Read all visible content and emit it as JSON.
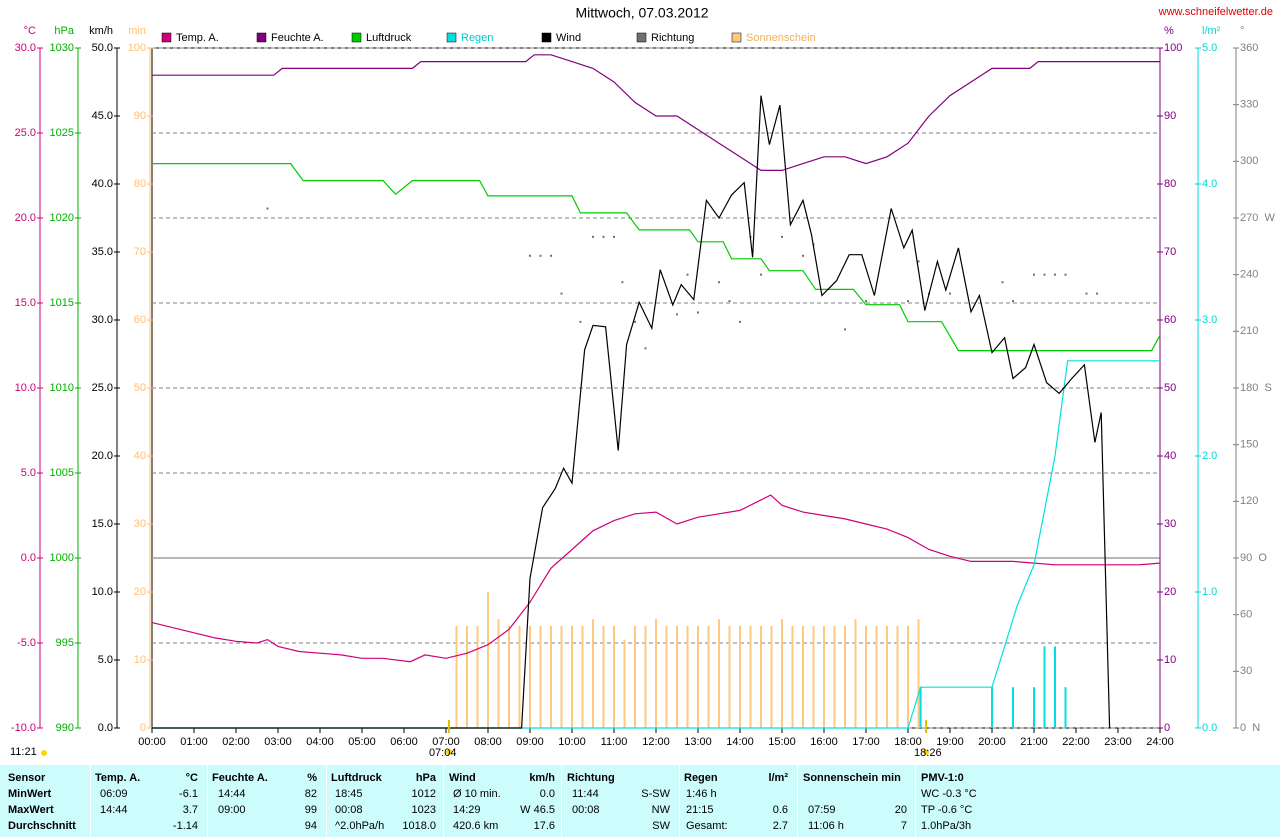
{
  "chart_data": {
    "type": "line",
    "title": "Mittwoch, 07.03.2012",
    "source": "www.schneifelwetter.de",
    "xlim": [
      0,
      24
    ],
    "xticks": [
      {
        "value": 0,
        "label": "00:00"
      },
      {
        "value": 1,
        "label": "01:00"
      },
      {
        "value": 2,
        "label": "02:00"
      },
      {
        "value": 3,
        "label": "03:00"
      },
      {
        "value": 4,
        "label": "04:00"
      },
      {
        "value": 5,
        "label": "05:00"
      },
      {
        "value": 6,
        "label": "06:00"
      },
      {
        "value": 7,
        "label": "07:00"
      },
      {
        "value": 8,
        "label": "08:00"
      },
      {
        "value": 9,
        "label": "09:00"
      },
      {
        "value": 10,
        "label": "10:00"
      },
      {
        "value": 11,
        "label": "11:00"
      },
      {
        "value": 12,
        "label": "12:00"
      },
      {
        "value": 13,
        "label": "13:00"
      },
      {
        "value": 14,
        "label": "14:00"
      },
      {
        "value": 15,
        "label": "15:00"
      },
      {
        "value": 16,
        "label": "16:00"
      },
      {
        "value": 17,
        "label": "17:00"
      },
      {
        "value": 18,
        "label": "18:00"
      },
      {
        "value": 19,
        "label": "19:00"
      },
      {
        "value": 20,
        "label": "20:00"
      },
      {
        "value": 21,
        "label": "21:00"
      },
      {
        "value": 22,
        "label": "22:00"
      },
      {
        "value": 23,
        "label": "23:00"
      },
      {
        "value": 24,
        "label": "24:00"
      }
    ],
    "grid": true,
    "axes": [
      {
        "id": "temp",
        "unit": "°C",
        "color": "#d0007a",
        "lim": [
          -10,
          30
        ],
        "ticks": [
          {
            "value": -10,
            "label": "-10.0"
          },
          {
            "value": -5,
            "label": "-5.0"
          },
          {
            "value": 0,
            "label": "0.0"
          },
          {
            "value": 5,
            "label": "5.0"
          },
          {
            "value": 10,
            "label": "10.0"
          },
          {
            "value": 15,
            "label": "15.0"
          },
          {
            "value": 20,
            "label": "20.0"
          },
          {
            "value": 25,
            "label": "25.0"
          },
          {
            "value": 30,
            "label": "30.0"
          }
        ]
      },
      {
        "id": "press",
        "unit": "hPa",
        "color": "#00b000",
        "lim": [
          990,
          1030
        ],
        "ticks": [
          990,
          995,
          1000,
          1005,
          1010,
          1015,
          1020,
          1025,
          1030
        ]
      },
      {
        "id": "wind",
        "unit": "km/h",
        "color": "#000000",
        "lim": [
          0,
          50
        ],
        "ticks": [
          {
            "value": 0,
            "label": "0.0"
          },
          {
            "value": 5,
            "label": "5.0"
          },
          {
            "value": 10,
            "label": "10.0"
          },
          {
            "value": 15,
            "label": "15.0"
          },
          {
            "value": 20,
            "label": "20.0"
          },
          {
            "value": 25,
            "label": "25.0"
          },
          {
            "value": 30,
            "label": "30.0"
          },
          {
            "value": 35,
            "label": "35.0"
          },
          {
            "value": 40,
            "label": "40.0"
          },
          {
            "value": 45,
            "label": "45.0"
          },
          {
            "value": 50,
            "label": "50.0"
          }
        ]
      },
      {
        "id": "sun",
        "unit": "min",
        "color": "#ffc070",
        "lim": [
          0,
          100
        ],
        "ticks": [
          0,
          10,
          20,
          30,
          40,
          50,
          60,
          70,
          80,
          90,
          100
        ]
      },
      {
        "id": "hum",
        "unit": "%",
        "color": "#800080",
        "lim": [
          0,
          100
        ],
        "ticks": [
          0,
          10,
          20,
          30,
          40,
          50,
          60,
          70,
          80,
          90,
          100
        ]
      },
      {
        "id": "rain",
        "unit": "l/m²",
        "color": "#00d8d8",
        "lim": [
          0,
          5
        ],
        "ticks": [
          {
            "value": 0,
            "label": "0.0"
          },
          {
            "value": 1,
            "label": "1.0"
          },
          {
            "value": 2,
            "label": "2.0"
          },
          {
            "value": 3,
            "label": "3.0"
          },
          {
            "value": 4,
            "label": "4.0"
          },
          {
            "value": 5,
            "label": "5.0"
          }
        ]
      },
      {
        "id": "dir",
        "unit": "°",
        "color": "#808080",
        "lim": [
          0,
          360
        ],
        "ticks": [
          {
            "value": 0,
            "label": "0  N"
          },
          30,
          60,
          {
            "value": 90,
            "label": "90  O"
          },
          120,
          150,
          {
            "value": 180,
            "label": "180  S"
          },
          210,
          240,
          {
            "value": 270,
            "label": "270  W"
          },
          300,
          330,
          360
        ]
      }
    ],
    "series": [
      {
        "name": "Temp. A.",
        "color": "#d0007a",
        "axis": "temp",
        "type": "line",
        "x": [
          0,
          0.5,
          1,
          1.5,
          2,
          2.5,
          2.75,
          3,
          3.5,
          4,
          4.5,
          5,
          5.5,
          6.15,
          6.5,
          7,
          7.5,
          8,
          8.5,
          9,
          9.5,
          10,
          10.5,
          11,
          11.5,
          12,
          12.5,
          13,
          13.5,
          14,
          14.73,
          15,
          15.5,
          16,
          16.5,
          17,
          17.5,
          18,
          18.5,
          19,
          19.5,
          20,
          20.5,
          21,
          21.5,
          22,
          22.5,
          23,
          23.5,
          24
        ],
        "values": [
          -3.8,
          -4.1,
          -4.4,
          -4.7,
          -4.9,
          -5.0,
          -4.8,
          -5.2,
          -5.5,
          -5.6,
          -5.7,
          -5.9,
          -5.9,
          -6.1,
          -5.7,
          -5.9,
          -5.6,
          -5.1,
          -4.2,
          -2.6,
          -0.6,
          0.5,
          1.6,
          2.2,
          2.6,
          2.7,
          2.0,
          2.4,
          2.6,
          2.8,
          3.7,
          3.1,
          2.7,
          2.5,
          2.3,
          2.0,
          1.7,
          1.2,
          0.5,
          0.1,
          -0.2,
          -0.2,
          -0.2,
          -0.3,
          -0.4,
          -0.4,
          -0.4,
          -0.4,
          -0.4,
          -0.3
        ]
      },
      {
        "name": "Feuchte A.",
        "color": "#800080",
        "axis": "hum",
        "type": "line",
        "x": [
          0,
          2.9,
          3.1,
          6.2,
          6.4,
          8.9,
          9.1,
          9.5,
          10,
          10.5,
          11,
          11.5,
          12,
          12.5,
          13,
          13.5,
          14,
          14.5,
          15,
          15.5,
          16,
          16.5,
          17,
          17.5,
          18,
          18.5,
          19,
          19.5,
          20,
          20.5,
          20.9,
          21.1,
          24
        ],
        "values": [
          96,
          96,
          97,
          97,
          98,
          98,
          99,
          99,
          98,
          97,
          95,
          92,
          90,
          90,
          88,
          86,
          84,
          82,
          82,
          83,
          84,
          84,
          83,
          84,
          86,
          90,
          93,
          95,
          97,
          97,
          97,
          98,
          98
        ]
      },
      {
        "name": "Luftdruck",
        "color": "#00cc00",
        "axis": "press",
        "type": "line",
        "x": [
          0,
          3.3,
          3.6,
          5.5,
          5.8,
          6.2,
          7.8,
          8.0,
          10.0,
          10.2,
          11.3,
          11.6,
          12.8,
          13.0,
          13.6,
          13.8,
          14.5,
          14.7,
          15.5,
          15.8,
          16.7,
          17.0,
          17.8,
          18.0,
          18.8,
          19.2,
          23.8,
          24
        ],
        "values": [
          1023.2,
          1023.2,
          1022.2,
          1022.2,
          1021.4,
          1022.2,
          1022.2,
          1021.3,
          1021.3,
          1020.3,
          1020.3,
          1019.3,
          1019.3,
          1018.6,
          1018.6,
          1017.6,
          1017.6,
          1016.9,
          1016.9,
          1015.8,
          1015.8,
          1014.9,
          1014.9,
          1013.9,
          1013.9,
          1012.2,
          1012.2,
          1013.1
        ]
      },
      {
        "name": "Regen",
        "color": "#00e0e0",
        "axis": "rain",
        "type": "line",
        "x": [
          0,
          18.0,
          18.3,
          19.9,
          20.0,
          20.3,
          20.6,
          21.0,
          21.5,
          21.8,
          24
        ],
        "values": [
          0,
          0,
          0.3,
          0.3,
          0.3,
          0.6,
          0.9,
          1.2,
          2.0,
          2.7,
          2.7
        ],
        "bar_x": [
          18.3,
          20.0,
          20.5,
          21.0,
          21.25,
          21.5,
          21.75
        ],
        "bar_values": [
          0.3,
          0.3,
          0.3,
          0.3,
          0.6,
          0.6,
          0.3
        ]
      },
      {
        "name": "Wind",
        "color": "#000000",
        "axis": "wind",
        "type": "line",
        "x": [
          0,
          8.8,
          9.0,
          9.3,
          9.6,
          9.8,
          10.0,
          10.3,
          10.5,
          10.8,
          11.1,
          11.3,
          11.6,
          11.9,
          12.1,
          12.4,
          12.6,
          12.9,
          13.2,
          13.5,
          13.8,
          14.1,
          14.3,
          14.5,
          14.7,
          14.95,
          15.2,
          15.5,
          15.7,
          15.95,
          16.3,
          16.6,
          16.9,
          17.2,
          17.6,
          17.9,
          18.1,
          18.4,
          18.7,
          18.9,
          19.2,
          19.5,
          19.7,
          20.0,
          20.3,
          20.5,
          20.8,
          21.0,
          21.3,
          21.6,
          21.9,
          22.2,
          22.45,
          22.6,
          22.8
        ],
        "values": [
          0,
          0,
          11,
          16.2,
          17.6,
          19.1,
          18.0,
          27.8,
          29.6,
          29.5,
          20.4,
          28.2,
          31.3,
          29.4,
          33.7,
          31.1,
          32.6,
          31.5,
          38.8,
          37.5,
          39.2,
          40.1,
          34.6,
          46.5,
          42.9,
          45.8,
          37.0,
          38.8,
          36.3,
          31.8,
          32.9,
          34.8,
          34.8,
          31.8,
          38.2,
          35.3,
          36.6,
          30.7,
          34.3,
          32.2,
          35.3,
          30.6,
          31.8,
          27.6,
          28.7,
          25.7,
          26.5,
          28.2,
          25.4,
          24.6,
          25.7,
          26.7,
          21.0,
          23.2,
          0
        ]
      },
      {
        "name": "Richtung",
        "color": "#707070",
        "axis": "dir",
        "type": "scatter",
        "x": [
          2.75,
          9.0,
          9.25,
          9.5,
          9.75,
          10.2,
          10.5,
          10.75,
          11.0,
          11.2,
          11.5,
          11.75,
          12.5,
          12.75,
          13.0,
          13.5,
          13.75,
          14.0,
          14.25,
          14.5,
          15.0,
          15.5,
          15.75,
          16.5,
          17.0,
          18.0,
          18.25,
          18.5,
          19.0,
          20.25,
          20.5,
          21.0,
          21.25,
          21.5,
          21.75,
          22.25,
          22.5
        ],
        "values": [
          275,
          250,
          250,
          250,
          230,
          215,
          260,
          260,
          260,
          236,
          215,
          201,
          219,
          240,
          220,
          236,
          226,
          215,
          260,
          240,
          260,
          250,
          256,
          211,
          226,
          226,
          247,
          230,
          230,
          236,
          226,
          240,
          240,
          240,
          240,
          230,
          230
        ]
      },
      {
        "name": "Sonnenschein",
        "color": "#ffc880",
        "axis": "sun",
        "type": "bar",
        "x": [
          7.25,
          7.5,
          7.75,
          8.0,
          8.25,
          8.5,
          8.75,
          9.0,
          9.25,
          9.5,
          9.75,
          10.0,
          10.25,
          10.5,
          10.75,
          11.0,
          11.25,
          11.5,
          11.75,
          12.0,
          12.25,
          12.5,
          12.75,
          13.0,
          13.25,
          13.5,
          13.75,
          14.0,
          14.25,
          14.5,
          14.75,
          15.0,
          15.25,
          15.5,
          15.75,
          16.0,
          16.25,
          16.5,
          16.75,
          17.0,
          17.25,
          17.5,
          17.75,
          18.0,
          18.25
        ],
        "values": [
          15,
          15,
          15,
          20,
          16,
          15,
          15,
          15,
          15,
          15,
          15,
          15,
          15,
          16,
          15,
          15,
          13,
          15,
          15,
          16,
          15,
          15,
          15,
          15,
          15,
          16,
          15,
          15,
          15,
          15,
          15,
          16,
          15,
          15,
          15,
          15,
          15,
          15,
          16,
          15,
          15,
          15,
          15,
          15,
          16
        ]
      }
    ],
    "sunrise": {
      "x": 7.07,
      "label": "07:04"
    },
    "sunset": {
      "x": 18.43,
      "label": "18:26"
    },
    "day_length": "11:21"
  },
  "table": {
    "header": [
      "Sensor",
      "Temp. A.",
      "°C",
      "Feuchte A.",
      "%",
      "Luftdruck",
      "hPa",
      "Wind",
      "km/h",
      "Richtung",
      "Regen",
      "l/m²",
      "Sonnenschein min",
      "PMV-1:0"
    ],
    "rows": [
      {
        "label": "MinWert",
        "cells": [
          "06:09",
          "-6.1",
          "14:44",
          "82",
          "18:45",
          "1012",
          "Ø 10 min.",
          "0.0",
          "11:44",
          "S-SW",
          "1:46 h",
          null,
          null,
          null,
          "WC -0.3 °C"
        ]
      },
      {
        "label": "MaxWert",
        "cells": [
          "14:44",
          "3.7",
          "09:00",
          "99",
          "00:08",
          "1023",
          "14:29",
          "W 46.5",
          "00:08",
          "NW",
          "21:15",
          "0.6",
          "07:59",
          "20",
          "TP -0.6 °C"
        ]
      },
      {
        "label": "Durchschnitt",
        "cells": [
          null,
          "-1.14",
          null,
          "94",
          "^2.0hPa/h",
          "1018.0",
          "420.6 km",
          "17.6",
          null,
          "SW",
          "Gesamt:",
          "2.7",
          "11:06 h",
          "7",
          "1.0hPa/3h"
        ]
      }
    ]
  }
}
